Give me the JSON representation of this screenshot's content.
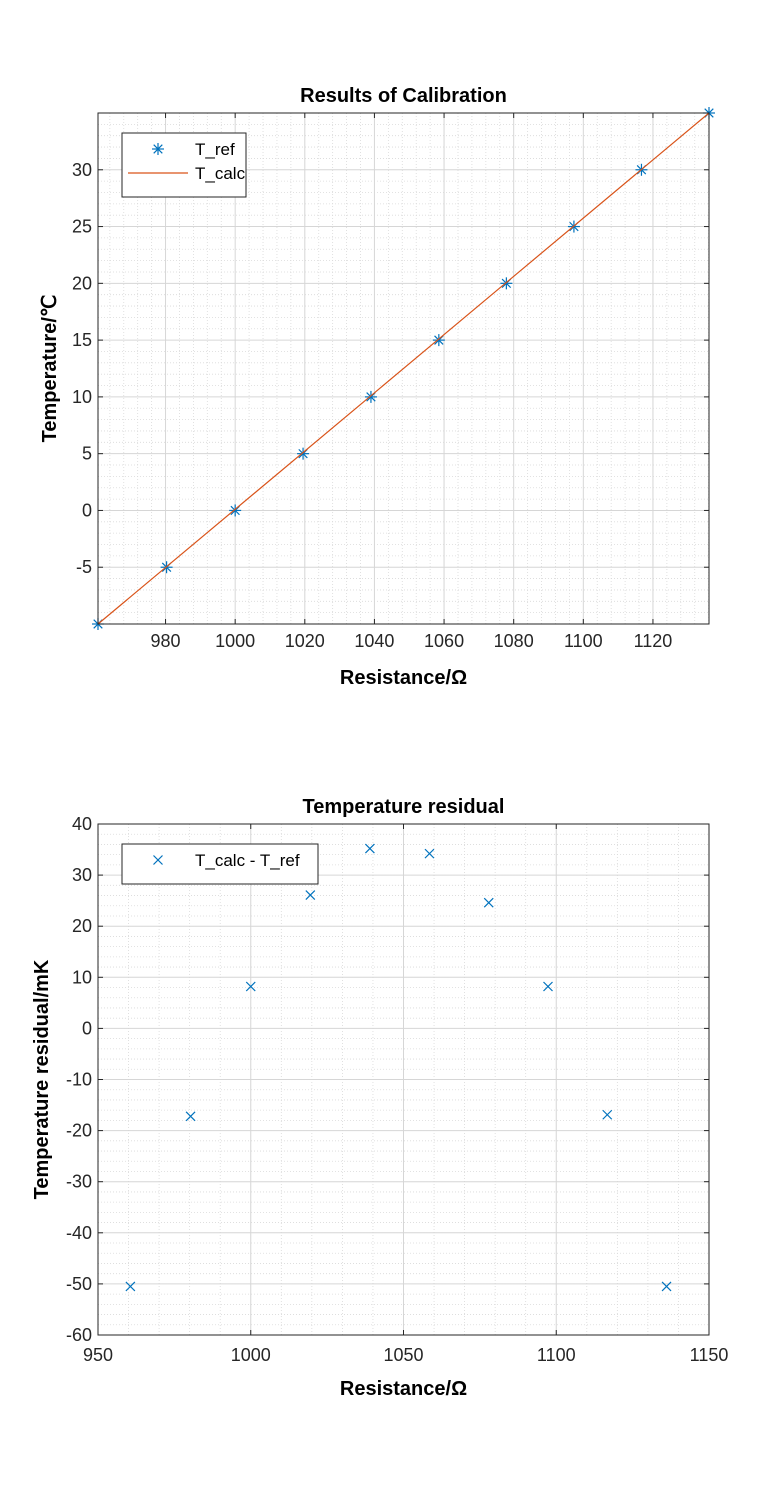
{
  "chart_data": [
    {
      "type": "scatter",
      "title": "Results of Calibration",
      "xlabel": "Resistance/Ω",
      "ylabel": "Temperature/℃",
      "xlim": [
        960.6,
        1136.1
      ],
      "ylim": [
        -10,
        35
      ],
      "xticks": [
        980,
        1000,
        1020,
        1040,
        1060,
        1080,
        1100,
        1120
      ],
      "yticks": [
        -5,
        0,
        5,
        10,
        15,
        20,
        25,
        30
      ],
      "grid": true,
      "minor_grid": true,
      "legend_position": "top-left",
      "series": [
        {
          "name": "T_ref",
          "style": "markers",
          "marker": "asterisk",
          "color": "#0072BD",
          "x": [
            960.6,
            980.3,
            1000.0,
            1019.5,
            1039.0,
            1058.5,
            1077.9,
            1097.3,
            1116.7,
            1136.1
          ],
          "y": [
            -10,
            -5,
            0,
            5,
            10,
            15,
            20,
            25,
            30,
            35
          ]
        },
        {
          "name": "T_calc",
          "style": "line",
          "color": "#D95319",
          "x": [
            960.6,
            1136.1
          ],
          "y": [
            -10,
            35
          ]
        }
      ]
    },
    {
      "type": "scatter",
      "title": "Temperature residual",
      "xlabel": "Resistance/Ω",
      "ylabel": "Temperature residual/mK",
      "xlim": [
        950,
        1150
      ],
      "ylim": [
        -60,
        40
      ],
      "xticks": [
        950,
        1000,
        1050,
        1100,
        1150
      ],
      "yticks": [
        -60,
        -50,
        -40,
        -30,
        -20,
        -10,
        0,
        10,
        20,
        30,
        40
      ],
      "grid": true,
      "minor_grid": true,
      "legend_position": "top-left",
      "series": [
        {
          "name": "T_calc - T_ref",
          "style": "markers",
          "marker": "x",
          "color": "#0072BD",
          "x": [
            960.6,
            980.3,
            1000.0,
            1019.5,
            1039.0,
            1058.5,
            1077.9,
            1097.3,
            1116.7,
            1136.1
          ],
          "y": [
            -50.5,
            -17.2,
            8.2,
            26.1,
            35.2,
            34.2,
            24.6,
            8.2,
            -16.9,
            -50.5
          ]
        }
      ]
    }
  ]
}
